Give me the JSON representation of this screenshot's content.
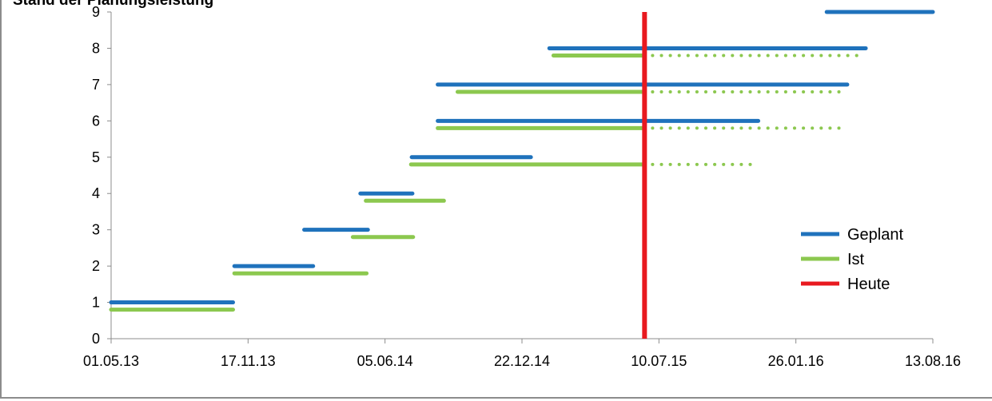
{
  "chart_data": {
    "type": "gantt",
    "title": "Stand der Planungsleistung",
    "xlabel": "",
    "ylabel": "",
    "x_ticks": [
      "01.05.13",
      "17.11.13",
      "05.06.14",
      "22.12.14",
      "10.07.15",
      "26.01.16",
      "13.08.16"
    ],
    "x_range": [
      "01.05.13",
      "13.08.16"
    ],
    "y_ticks": [
      0,
      1,
      2,
      3,
      4,
      5,
      6,
      7,
      8,
      9
    ],
    "y_range": [
      0,
      9
    ],
    "grid": false,
    "legend_position": "right",
    "legend": [
      "Geplant",
      "Ist",
      "Heute"
    ],
    "colors": {
      "Geplant": "#1f72bc",
      "Ist": "#8cc84f",
      "Heute": "#e8191f"
    },
    "today": "19.06.15",
    "series": [
      {
        "name": "Geplant",
        "bars": [
          {
            "y": 1,
            "start": "01.05.13",
            "end": "26.10.13"
          },
          {
            "y": 2,
            "start": "28.10.13",
            "end": "20.02.14"
          },
          {
            "y": 3,
            "start": "07.02.14",
            "end": "11.05.14"
          },
          {
            "y": 4,
            "start": "30.04.14",
            "end": "15.07.14"
          },
          {
            "y": 5,
            "start": "14.07.14",
            "end": "04.01.15"
          },
          {
            "y": 6,
            "start": "21.08.14",
            "end": "02.12.15"
          },
          {
            "y": 7,
            "start": "21.08.14",
            "end": "10.04.16"
          },
          {
            "y": 8,
            "start": "31.01.15",
            "end": "07.05.16"
          },
          {
            "y": 9,
            "start": "11.03.16",
            "end": "13.08.16"
          }
        ]
      },
      {
        "name": "Ist",
        "bars": [
          {
            "y": 0.8,
            "start": "01.05.13",
            "end": "26.10.13"
          },
          {
            "y": 1.8,
            "start": "28.10.13",
            "end": "09.05.14"
          },
          {
            "y": 2.8,
            "start": "19.04.14",
            "end": "16.07.14"
          },
          {
            "y": 3.8,
            "start": "08.05.14",
            "end": "30.08.14",
            "planned_end": "30.08.14"
          },
          {
            "y": 4.8,
            "start": "13.07.14",
            "end": "19.06.15",
            "planned_end": "28.11.15"
          },
          {
            "y": 5.8,
            "start": "21.08.14",
            "end": "19.06.15",
            "planned_end": "10.04.16"
          },
          {
            "y": 6.8,
            "start": "19.09.14",
            "end": "19.06.15",
            "planned_end": "10.04.16"
          },
          {
            "y": 7.8,
            "start": "06.02.15",
            "end": "19.06.15",
            "planned_end": "03.05.16"
          }
        ]
      }
    ]
  }
}
